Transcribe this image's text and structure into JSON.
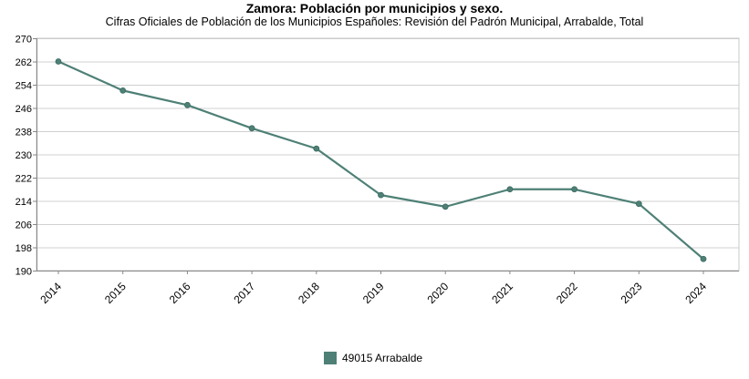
{
  "chart_data": {
    "type": "line",
    "title": "Zamora: Población por municipios y sexo.",
    "subtitle": "Cifras Oficiales de Población de los Municipios Españoles: Revisión del Padrón Municipal, Arrabalde, Total",
    "categories": [
      "2014",
      "2015",
      "2016",
      "2017",
      "2018",
      "2019",
      "2020",
      "2021",
      "2022",
      "2023",
      "2024"
    ],
    "series": [
      {
        "name": "49015 Arrabalde",
        "values": [
          262,
          252,
          247,
          239,
          232,
          216,
          212,
          218,
          218,
          213,
          194
        ],
        "color": "#4e8076"
      }
    ],
    "ylim": [
      190,
      270
    ],
    "yticks": [
      270,
      262,
      254,
      246,
      238,
      230,
      222,
      214,
      206,
      198,
      190
    ],
    "grid": true,
    "legend": "bottom-center",
    "xlabel": "",
    "ylabel": ""
  }
}
